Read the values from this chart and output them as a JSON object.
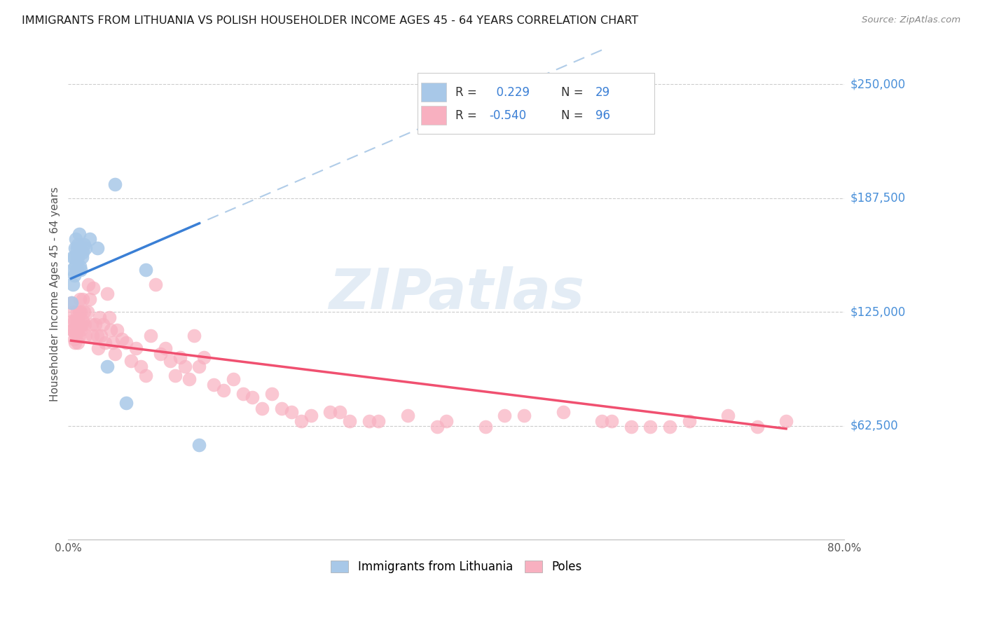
{
  "title": "IMMIGRANTS FROM LITHUANIA VS POLISH HOUSEHOLDER INCOME AGES 45 - 64 YEARS CORRELATION CHART",
  "source": "Source: ZipAtlas.com",
  "ylabel": "Householder Income Ages 45 - 64 years",
  "legend_label_1": "Immigrants from Lithuania",
  "legend_label_2": "Poles",
  "r1": 0.229,
  "n1": 29,
  "r2": -0.54,
  "n2": 96,
  "color1": "#a8c8e8",
  "color2": "#f8b0c0",
  "trend1_color": "#3a7fd5",
  "trend2_color": "#f05070",
  "trend1_dash_color": "#b0cce8",
  "watermark": "ZIPatlas",
  "xmin": 0.0,
  "xmax": 0.8,
  "ymin": 0,
  "ymax": 270000,
  "yticks": [
    62500,
    125000,
    187500,
    250000
  ],
  "ytick_labels": [
    "$62,500",
    "$125,000",
    "$187,500",
    "$250,000"
  ],
  "xticks": [
    0.0,
    0.1,
    0.2,
    0.3,
    0.4,
    0.5,
    0.6,
    0.7,
    0.8
  ],
  "xtick_labels": [
    "0.0%",
    "",
    "",
    "",
    "",
    "",
    "",
    "",
    "80.0%"
  ],
  "blue_points_x": [
    0.003,
    0.004,
    0.005,
    0.005,
    0.006,
    0.006,
    0.007,
    0.007,
    0.008,
    0.009,
    0.009,
    0.01,
    0.01,
    0.011,
    0.011,
    0.012,
    0.012,
    0.013,
    0.014,
    0.015,
    0.016,
    0.018,
    0.022,
    0.048,
    0.06,
    0.08,
    0.03,
    0.04,
    0.135
  ],
  "blue_points_y": [
    130000,
    148000,
    140000,
    155000,
    145000,
    155000,
    150000,
    160000,
    165000,
    160000,
    148000,
    155000,
    162000,
    158000,
    168000,
    150000,
    160000,
    148000,
    155000,
    158000,
    162000,
    160000,
    165000,
    195000,
    75000,
    148000,
    160000,
    95000,
    52000
  ],
  "pink_points_x": [
    0.003,
    0.004,
    0.004,
    0.005,
    0.005,
    0.006,
    0.006,
    0.007,
    0.007,
    0.008,
    0.008,
    0.009,
    0.009,
    0.01,
    0.01,
    0.011,
    0.011,
    0.012,
    0.012,
    0.013,
    0.013,
    0.014,
    0.015,
    0.015,
    0.016,
    0.017,
    0.018,
    0.02,
    0.021,
    0.022,
    0.024,
    0.025,
    0.026,
    0.028,
    0.03,
    0.031,
    0.032,
    0.034,
    0.036,
    0.038,
    0.04,
    0.042,
    0.044,
    0.046,
    0.048,
    0.05,
    0.055,
    0.06,
    0.065,
    0.07,
    0.075,
    0.08,
    0.085,
    0.09,
    0.095,
    0.1,
    0.105,
    0.11,
    0.115,
    0.12,
    0.125,
    0.13,
    0.135,
    0.14,
    0.15,
    0.16,
    0.17,
    0.18,
    0.19,
    0.2,
    0.21,
    0.22,
    0.23,
    0.25,
    0.27,
    0.29,
    0.31,
    0.35,
    0.39,
    0.43,
    0.47,
    0.51,
    0.55,
    0.6,
    0.64,
    0.68,
    0.71,
    0.74,
    0.45,
    0.38,
    0.32,
    0.28,
    0.24,
    0.58,
    0.62,
    0.56
  ],
  "pink_points_y": [
    130000,
    120000,
    115000,
    125000,
    115000,
    120000,
    110000,
    115000,
    108000,
    120000,
    112000,
    125000,
    115000,
    120000,
    108000,
    125000,
    112000,
    132000,
    118000,
    125000,
    115000,
    118000,
    132000,
    120000,
    125000,
    118000,
    112000,
    125000,
    140000,
    132000,
    118000,
    112000,
    138000,
    118000,
    112000,
    105000,
    122000,
    112000,
    118000,
    108000,
    135000,
    122000,
    115000,
    108000,
    102000,
    115000,
    110000,
    108000,
    98000,
    105000,
    95000,
    90000,
    112000,
    140000,
    102000,
    105000,
    98000,
    90000,
    100000,
    95000,
    88000,
    112000,
    95000,
    100000,
    85000,
    82000,
    88000,
    80000,
    78000,
    72000,
    80000,
    72000,
    70000,
    68000,
    70000,
    65000,
    65000,
    68000,
    65000,
    62000,
    68000,
    70000,
    65000,
    62000,
    65000,
    68000,
    62000,
    65000,
    68000,
    62000,
    65000,
    70000,
    65000,
    62000,
    62000,
    65000
  ],
  "trend1_x_solid_start": 0.003,
  "trend1_x_solid_end": 0.135,
  "trend1_x_dash_start": 0.0,
  "trend1_x_dash_end": 0.8,
  "trend2_x_start": 0.003,
  "trend2_x_end": 0.74
}
